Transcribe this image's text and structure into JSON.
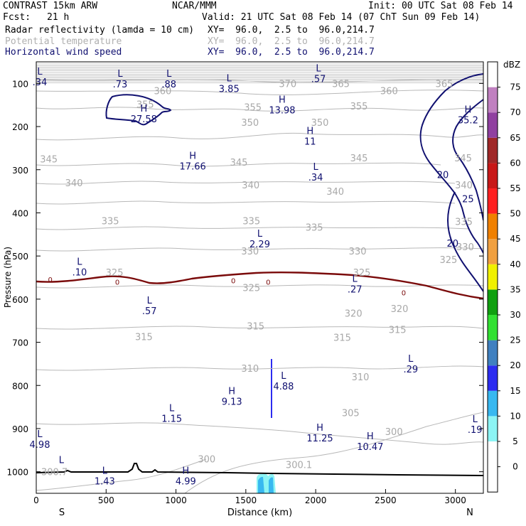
{
  "header": {
    "model": "CONTRAST 15km ARW",
    "center": "NCAR/MMM",
    "init": "Init: 00 UTC Sat 08 Feb 14",
    "fcst_label": "Fcst:",
    "fcst_value": "21 h",
    "valid": "Valid: 21 UTC Sat 08 Feb 14 (07 ChT Sun 09 Feb 14)",
    "fields": [
      {
        "name": "Radar reflectivity (lamda = 10 cm)",
        "xy": "XY=  96.0,  2.5 to  96.0,214.7",
        "color": "#000000"
      },
      {
        "name": "Potential temperature",
        "xy": "XY=  96.0,  2.5 to  96.0,214.7",
        "color": "#b0b0b0"
      },
      {
        "name": "Horizontal wind speed",
        "xy": "XY=  96.0,  2.5 to  96.0,214.7",
        "color": "#101070"
      }
    ]
  },
  "chart_data": {
    "type": "cross-section",
    "xlabel": "Distance (km)",
    "ylabel": "Pressure (hPa)",
    "xlim": [
      0,
      3200
    ],
    "ylim": [
      1050,
      50
    ],
    "x_ticks": [
      0,
      500,
      1000,
      1500,
      2000,
      2500,
      3000
    ],
    "y_ticks": [
      100,
      200,
      300,
      400,
      500,
      600,
      700,
      800,
      900,
      1000
    ],
    "left_end_label": "S",
    "right_end_label": "N",
    "colorbar": {
      "title": "dBZ",
      "levels": [
        0,
        5,
        10,
        15,
        20,
        25,
        30,
        35,
        40,
        45,
        50,
        55,
        60,
        65,
        70,
        75
      ],
      "colors": [
        "#ffffff",
        "#ffffff",
        "#8cf4f4",
        "#38b8f0",
        "#2c2cf0",
        "#4080c0",
        "#32e032",
        "#10a010",
        "#f0f000",
        "#f0a040",
        "#f08000",
        "#ff2020",
        "#c81818",
        "#a02828",
        "#9040a0",
        "#c080c0",
        "#ffffff"
      ]
    },
    "theta_labels": [
      {
        "v": "370",
        "x": 1800,
        "p": 100
      },
      {
        "v": "365",
        "x": 2180,
        "p": 100
      },
      {
        "v": "365",
        "x": 2920,
        "p": 100
      },
      {
        "v": "360",
        "x": 905,
        "p": 117
      },
      {
        "v": "360",
        "x": 2525,
        "p": 117
      },
      {
        "v": "355",
        "x": 780,
        "p": 148
      },
      {
        "v": "355",
        "x": 1550,
        "p": 155
      },
      {
        "v": "355",
        "x": 2310,
        "p": 152
      },
      {
        "v": "350",
        "x": 1530,
        "p": 190
      },
      {
        "v": "350",
        "x": 2030,
        "p": 190
      },
      {
        "v": "345",
        "x": 90,
        "p": 275
      },
      {
        "v": "345",
        "x": 1450,
        "p": 282
      },
      {
        "v": "345",
        "x": 2310,
        "p": 272
      },
      {
        "v": "345",
        "x": 3055,
        "p": 272
      },
      {
        "v": "340",
        "x": 270,
        "p": 330
      },
      {
        "v": "340",
        "x": 1535,
        "p": 335
      },
      {
        "v": "340",
        "x": 2140,
        "p": 350
      },
      {
        "v": "340",
        "x": 3060,
        "p": 335
      },
      {
        "v": "335",
        "x": 530,
        "p": 418
      },
      {
        "v": "335",
        "x": 1540,
        "p": 418
      },
      {
        "v": "335",
        "x": 1990,
        "p": 433
      },
      {
        "v": "335",
        "x": 3060,
        "p": 420
      },
      {
        "v": "330",
        "x": 1530,
        "p": 488
      },
      {
        "v": "330",
        "x": 2300,
        "p": 488
      },
      {
        "v": "330",
        "x": 3070,
        "p": 478
      },
      {
        "v": "325",
        "x": 560,
        "p": 538
      },
      {
        "v": "325",
        "x": 1540,
        "p": 573
      },
      {
        "v": "325",
        "x": 2330,
        "p": 538
      },
      {
        "v": "325",
        "x": 2950,
        "p": 508
      },
      {
        "v": "320",
        "x": 2270,
        "p": 632
      },
      {
        "v": "320",
        "x": 2600,
        "p": 622
      },
      {
        "v": "315",
        "x": 770,
        "p": 687
      },
      {
        "v": "315",
        "x": 1570,
        "p": 662
      },
      {
        "v": "315",
        "x": 2190,
        "p": 688
      },
      {
        "v": "315",
        "x": 2585,
        "p": 670
      },
      {
        "v": "310",
        "x": 1530,
        "p": 760
      },
      {
        "v": "310",
        "x": 2320,
        "p": 780
      },
      {
        "v": "305",
        "x": 2250,
        "p": 863
      },
      {
        "v": "300",
        "x": 2560,
        "p": 907
      },
      {
        "v": "300",
        "x": 1220,
        "p": 970
      },
      {
        "v": "300.1",
        "x": 1880,
        "p": 983
      },
      {
        "v": "300.7",
        "x": 130,
        "p": 1000
      }
    ],
    "wind_contours": [
      {
        "v": "20",
        "x": 2910,
        "p": 311
      },
      {
        "v": "25",
        "x": 3090,
        "p": 367
      },
      {
        "v": "20",
        "x": 2980,
        "p": 470
      }
    ],
    "zero_line_labels": [
      {
        "v": "0",
        "x": 100
      },
      {
        "v": "0",
        "x": 580
      },
      {
        "v": "0",
        "x": 1410
      },
      {
        "v": "0",
        "x": 1660
      },
      {
        "v": "0",
        "x": 2630
      }
    ],
    "extrema": [
      {
        "t": "L",
        "v": ".34",
        "x": 0,
        "p": 80
      },
      {
        "t": "L",
        "v": ".73",
        "x": 600,
        "p": 85
      },
      {
        "t": "L",
        "v": ".88",
        "x": 950,
        "p": 85
      },
      {
        "t": "L",
        "v": "3.85",
        "x": 1380,
        "p": 95
      },
      {
        "t": "L",
        "v": ".57",
        "x": 2020,
        "p": 72
      },
      {
        "t": "H",
        "v": "27.58",
        "x": 770,
        "p": 165
      },
      {
        "t": "H",
        "v": "13.98",
        "x": 1760,
        "p": 145
      },
      {
        "t": "H",
        "v": "35.2",
        "x": 3090,
        "p": 168
      },
      {
        "t": "H",
        "v": "11",
        "x": 1960,
        "p": 217
      },
      {
        "t": "H",
        "v": "17.66",
        "x": 1120,
        "p": 275
      },
      {
        "t": "L",
        "v": ".34",
        "x": 2000,
        "p": 300
      },
      {
        "t": "L",
        "v": "2.29",
        "x": 1600,
        "p": 455
      },
      {
        "t": "L",
        "v": ".10",
        "x": 310,
        "p": 520
      },
      {
        "t": "L",
        "v": ".27",
        "x": 2280,
        "p": 560
      },
      {
        "t": "L",
        "v": ".57",
        "x": 810,
        "p": 610
      },
      {
        "t": "L",
        "v": ".29",
        "x": 2680,
        "p": 745
      },
      {
        "t": "L",
        "v": "4.88",
        "x": 1770,
        "p": 785
      },
      {
        "t": "H",
        "v": "9.13",
        "x": 1400,
        "p": 820
      },
      {
        "t": "L",
        "v": "1.15",
        "x": 970,
        "p": 860
      },
      {
        "t": "H",
        "v": "11.25",
        "x": 2030,
        "p": 905
      },
      {
        "t": "H",
        "v": "10.47",
        "x": 2390,
        "p": 925
      },
      {
        "t": "L",
        "v": ".19",
        "x": 3140,
        "p": 885
      },
      {
        "t": "L",
        "v": "4.98",
        "x": 0,
        "p": 920
      },
      {
        "t": "L",
        "v": "1.43",
        "x": 490,
        "p": 1005
      },
      {
        "t": "H",
        "v": "4.99",
        "x": 1070,
        "p": 1005
      },
      {
        "t": "L",
        "v": "",
        "x": 180,
        "p": 980
      }
    ]
  }
}
